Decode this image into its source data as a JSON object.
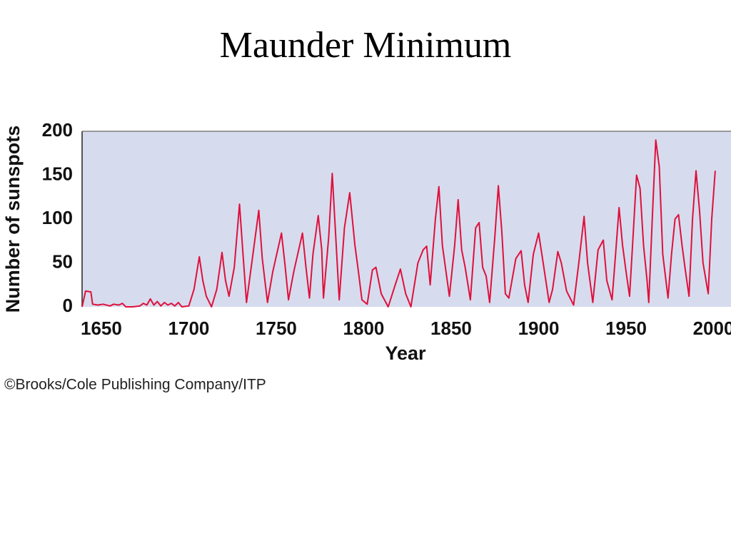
{
  "chart_data": {
    "type": "line",
    "title": "Maunder Minimum",
    "ylabel": "Number of sunspots",
    "xlabel": "Year",
    "credit": "©Brooks/Cole Publishing Company/ITP",
    "color": "#e0103c",
    "xlim": [
      1639,
      2010
    ],
    "ylim": [
      0,
      200
    ],
    "xticks": [
      1650,
      1700,
      1750,
      1800,
      1850,
      1900,
      1950,
      2000
    ],
    "yticks": [
      0,
      50,
      100,
      150,
      200
    ],
    "x": [
      1639,
      1641,
      1644,
      1645,
      1648,
      1651,
      1655,
      1657,
      1660,
      1662,
      1664,
      1668,
      1672,
      1674,
      1676,
      1678,
      1680,
      1682,
      1684,
      1686,
      1688,
      1690,
      1692,
      1694,
      1696,
      1700,
      1703,
      1706,
      1708,
      1710,
      1713,
      1716,
      1719,
      1721,
      1723,
      1726,
      1729,
      1731,
      1733,
      1736,
      1740,
      1742,
      1745,
      1748,
      1753,
      1755,
      1757,
      1760,
      1765,
      1767,
      1769,
      1771,
      1774,
      1776,
      1777,
      1780,
      1782,
      1784,
      1786,
      1789,
      1792,
      1795,
      1797,
      1799,
      1802,
      1805,
      1807,
      1810,
      1814,
      1818,
      1821,
      1824,
      1827,
      1831,
      1834,
      1836,
      1838,
      1841,
      1843,
      1845,
      1849,
      1852,
      1854,
      1856,
      1858,
      1861,
      1864,
      1866,
      1868,
      1870,
      1872,
      1875,
      1877,
      1879,
      1881,
      1883,
      1887,
      1890,
      1892,
      1894,
      1897,
      1900,
      1903,
      1906,
      1908,
      1911,
      1913,
      1916,
      1920,
      1923,
      1926,
      1928,
      1931,
      1934,
      1937,
      1939,
      1942,
      1944,
      1946,
      1948,
      1950,
      1952,
      1954,
      1956,
      1958,
      1960,
      1962,
      1963,
      1965,
      1967,
      1969,
      1971,
      1974,
      1976,
      1978,
      1980,
      1982,
      1984,
      1986,
      1988,
      1990,
      1992,
      1994,
      1997,
      1999,
      2001
    ],
    "values": [
      0,
      18,
      17,
      3,
      2,
      3,
      1,
      3,
      2,
      4,
      0,
      0,
      1,
      4,
      2,
      9,
      2,
      6,
      1,
      5,
      2,
      4,
      1,
      5,
      0,
      1,
      20,
      57,
      30,
      12,
      0,
      20,
      62,
      30,
      12,
      45,
      117,
      60,
      5,
      50,
      110,
      55,
      5,
      40,
      84,
      48,
      8,
      40,
      84,
      45,
      10,
      60,
      104,
      65,
      10,
      80,
      152,
      80,
      8,
      90,
      130,
      70,
      40,
      8,
      3,
      42,
      45,
      15,
      0,
      25,
      43,
      15,
      0,
      50,
      65,
      69,
      25,
      100,
      137,
      70,
      12,
      70,
      122,
      65,
      45,
      8,
      90,
      96,
      45,
      35,
      5,
      80,
      138,
      85,
      15,
      10,
      55,
      64,
      25,
      5,
      60,
      84,
      45,
      5,
      20,
      63,
      50,
      18,
      2,
      50,
      103,
      50,
      5,
      65,
      76,
      30,
      8,
      60,
      113,
      70,
      40,
      12,
      80,
      150,
      135,
      70,
      30,
      5,
      100,
      190,
      160,
      60,
      10,
      60,
      100,
      105,
      70,
      40,
      12,
      100,
      155,
      110,
      50,
      15,
      100,
      155
    ]
  }
}
